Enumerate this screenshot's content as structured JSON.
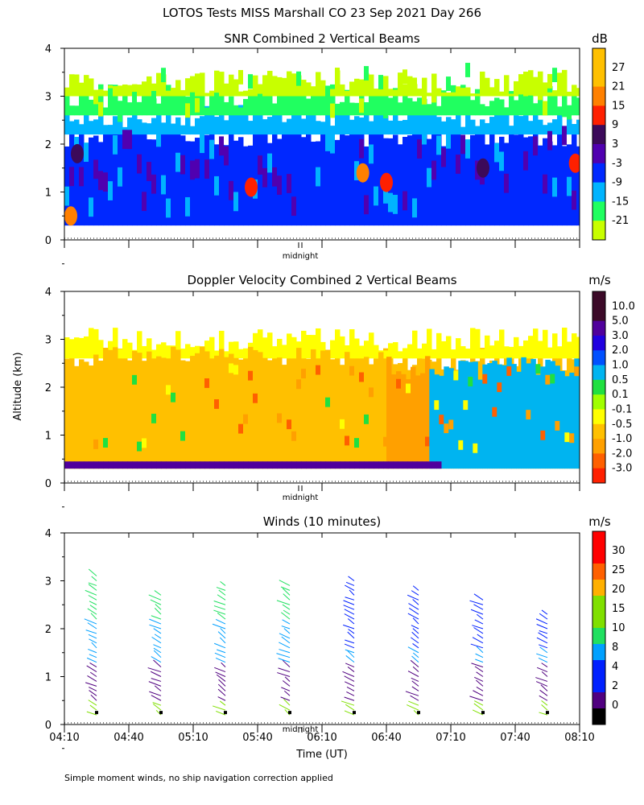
{
  "title": "LOTOS Tests MISS Marshall CO  23 Sep 2021 Day 266",
  "y_axis_label": "Altitude (km)",
  "x_axis_label": "Time (UT)",
  "midnight_label": "midnight",
  "footnote": "Simple moment winds, no ship navigation correction applied",
  "chart_data": [
    {
      "type": "heatmap",
      "title": "SNR Combined 2 Vertical Beams",
      "units": "dB",
      "ylim": [
        0,
        4
      ],
      "yticks": [
        0,
        1,
        2,
        3,
        4
      ],
      "colorbar_labels": [
        "27",
        "21",
        "15",
        "9",
        "3",
        "-3",
        "-9",
        "-15",
        "-21"
      ],
      "colorbar_colors": [
        "#ffc000",
        "#ff8000",
        "#ff2000",
        "#3c0a5a",
        "#5000b0",
        "#0028ff",
        "#00b4ff",
        "#20ff60",
        "#c8ff00"
      ],
      "colorbar_bins": 10,
      "profile_km": [
        [
          0.3,
          2.2,
          "-3"
        ],
        [
          2.2,
          2.6,
          "-9"
        ],
        [
          2.6,
          3.0,
          "-15"
        ],
        [
          3.0,
          3.3,
          "-21"
        ]
      ],
      "patches": [
        {
          "time": "04:16",
          "alt": 1.8,
          "value": "9"
        },
        {
          "time": "04:13",
          "alt": 0.5,
          "value": "21"
        },
        {
          "time": "05:37",
          "alt": 1.1,
          "value": "15"
        },
        {
          "time": "06:29",
          "alt": 1.4,
          "value": "21"
        },
        {
          "time": "06:40",
          "alt": 1.2,
          "value": "15"
        },
        {
          "time": "07:25",
          "alt": 1.5,
          "value": "9"
        },
        {
          "time": "08:08",
          "alt": 1.6,
          "value": "15"
        }
      ]
    },
    {
      "type": "heatmap",
      "title": "Doppler Velocity Combined 2 Vertical Beams",
      "units": "m/s",
      "ylim": [
        0,
        4
      ],
      "yticks": [
        0,
        1,
        2,
        3,
        4
      ],
      "colorbar_labels": [
        "10.0",
        "5.0",
        "3.0",
        "2.0",
        "1.0",
        "0.5",
        "0.1",
        "-0.1",
        "-0.5",
        "-1.0",
        "-2.0",
        "-3.0"
      ],
      "colorbar_colors": [
        "#3c0a28",
        "#50009c",
        "#2000e0",
        "#0050ff",
        "#00b4f0",
        "#20e040",
        "#a0ff00",
        "#ffff00",
        "#ffc000",
        "#ffa000",
        "#ff6000",
        "#ff2000"
      ],
      "colorbar_bins": 13,
      "profile_km": [
        [
          0.3,
          2.6,
          "-0.5"
        ],
        [
          2.6,
          3.0,
          "-0.1"
        ]
      ],
      "regions": [
        {
          "from": "04:10",
          "to": "06:40",
          "value": "-0.5",
          "top": 2.6
        },
        {
          "from": "06:40",
          "to": "07:00",
          "value": "-1.0",
          "top": 2.4
        },
        {
          "from": "07:00",
          "to": "08:10",
          "value": "1.0",
          "top": 2.4
        },
        {
          "from": "04:10",
          "to": "07:04",
          "value": "5.0",
          "top": 0.45
        }
      ]
    },
    {
      "type": "scatter",
      "title": "Winds (10 minutes)",
      "units": "m/s",
      "ylim": [
        0,
        4
      ],
      "yticks": [
        0,
        1,
        2,
        3,
        4
      ],
      "xlim": [
        "04:10",
        "08:10"
      ],
      "xticks": [
        "04:10",
        "04:40",
        "05:10",
        "05:40",
        "06:10",
        "06:40",
        "07:10",
        "07:40",
        "08:10"
      ],
      "colorbar_labels": [
        "30",
        "25",
        "20",
        "15",
        "10",
        "8",
        "4",
        "2",
        "0"
      ],
      "colorbar_colors": [
        "#ff0000",
        "#ff6000",
        "#ffb000",
        "#80e000",
        "#20e060",
        "#00a0ff",
        "#0020ff",
        "#500080",
        "#000000"
      ],
      "colorbar_bins": 12,
      "profiles": [
        {
          "time": "04:25",
          "top_km": 3.2
        },
        {
          "time": "04:55",
          "top_km": 2.8
        },
        {
          "time": "05:25",
          "top_km": 3.0
        },
        {
          "time": "05:55",
          "top_km": 3.0
        },
        {
          "time": "06:25",
          "top_km": 3.1
        },
        {
          "time": "06:55",
          "top_km": 2.9
        },
        {
          "time": "07:25",
          "top_km": 2.7
        },
        {
          "time": "07:55",
          "top_km": 2.4
        }
      ]
    }
  ]
}
